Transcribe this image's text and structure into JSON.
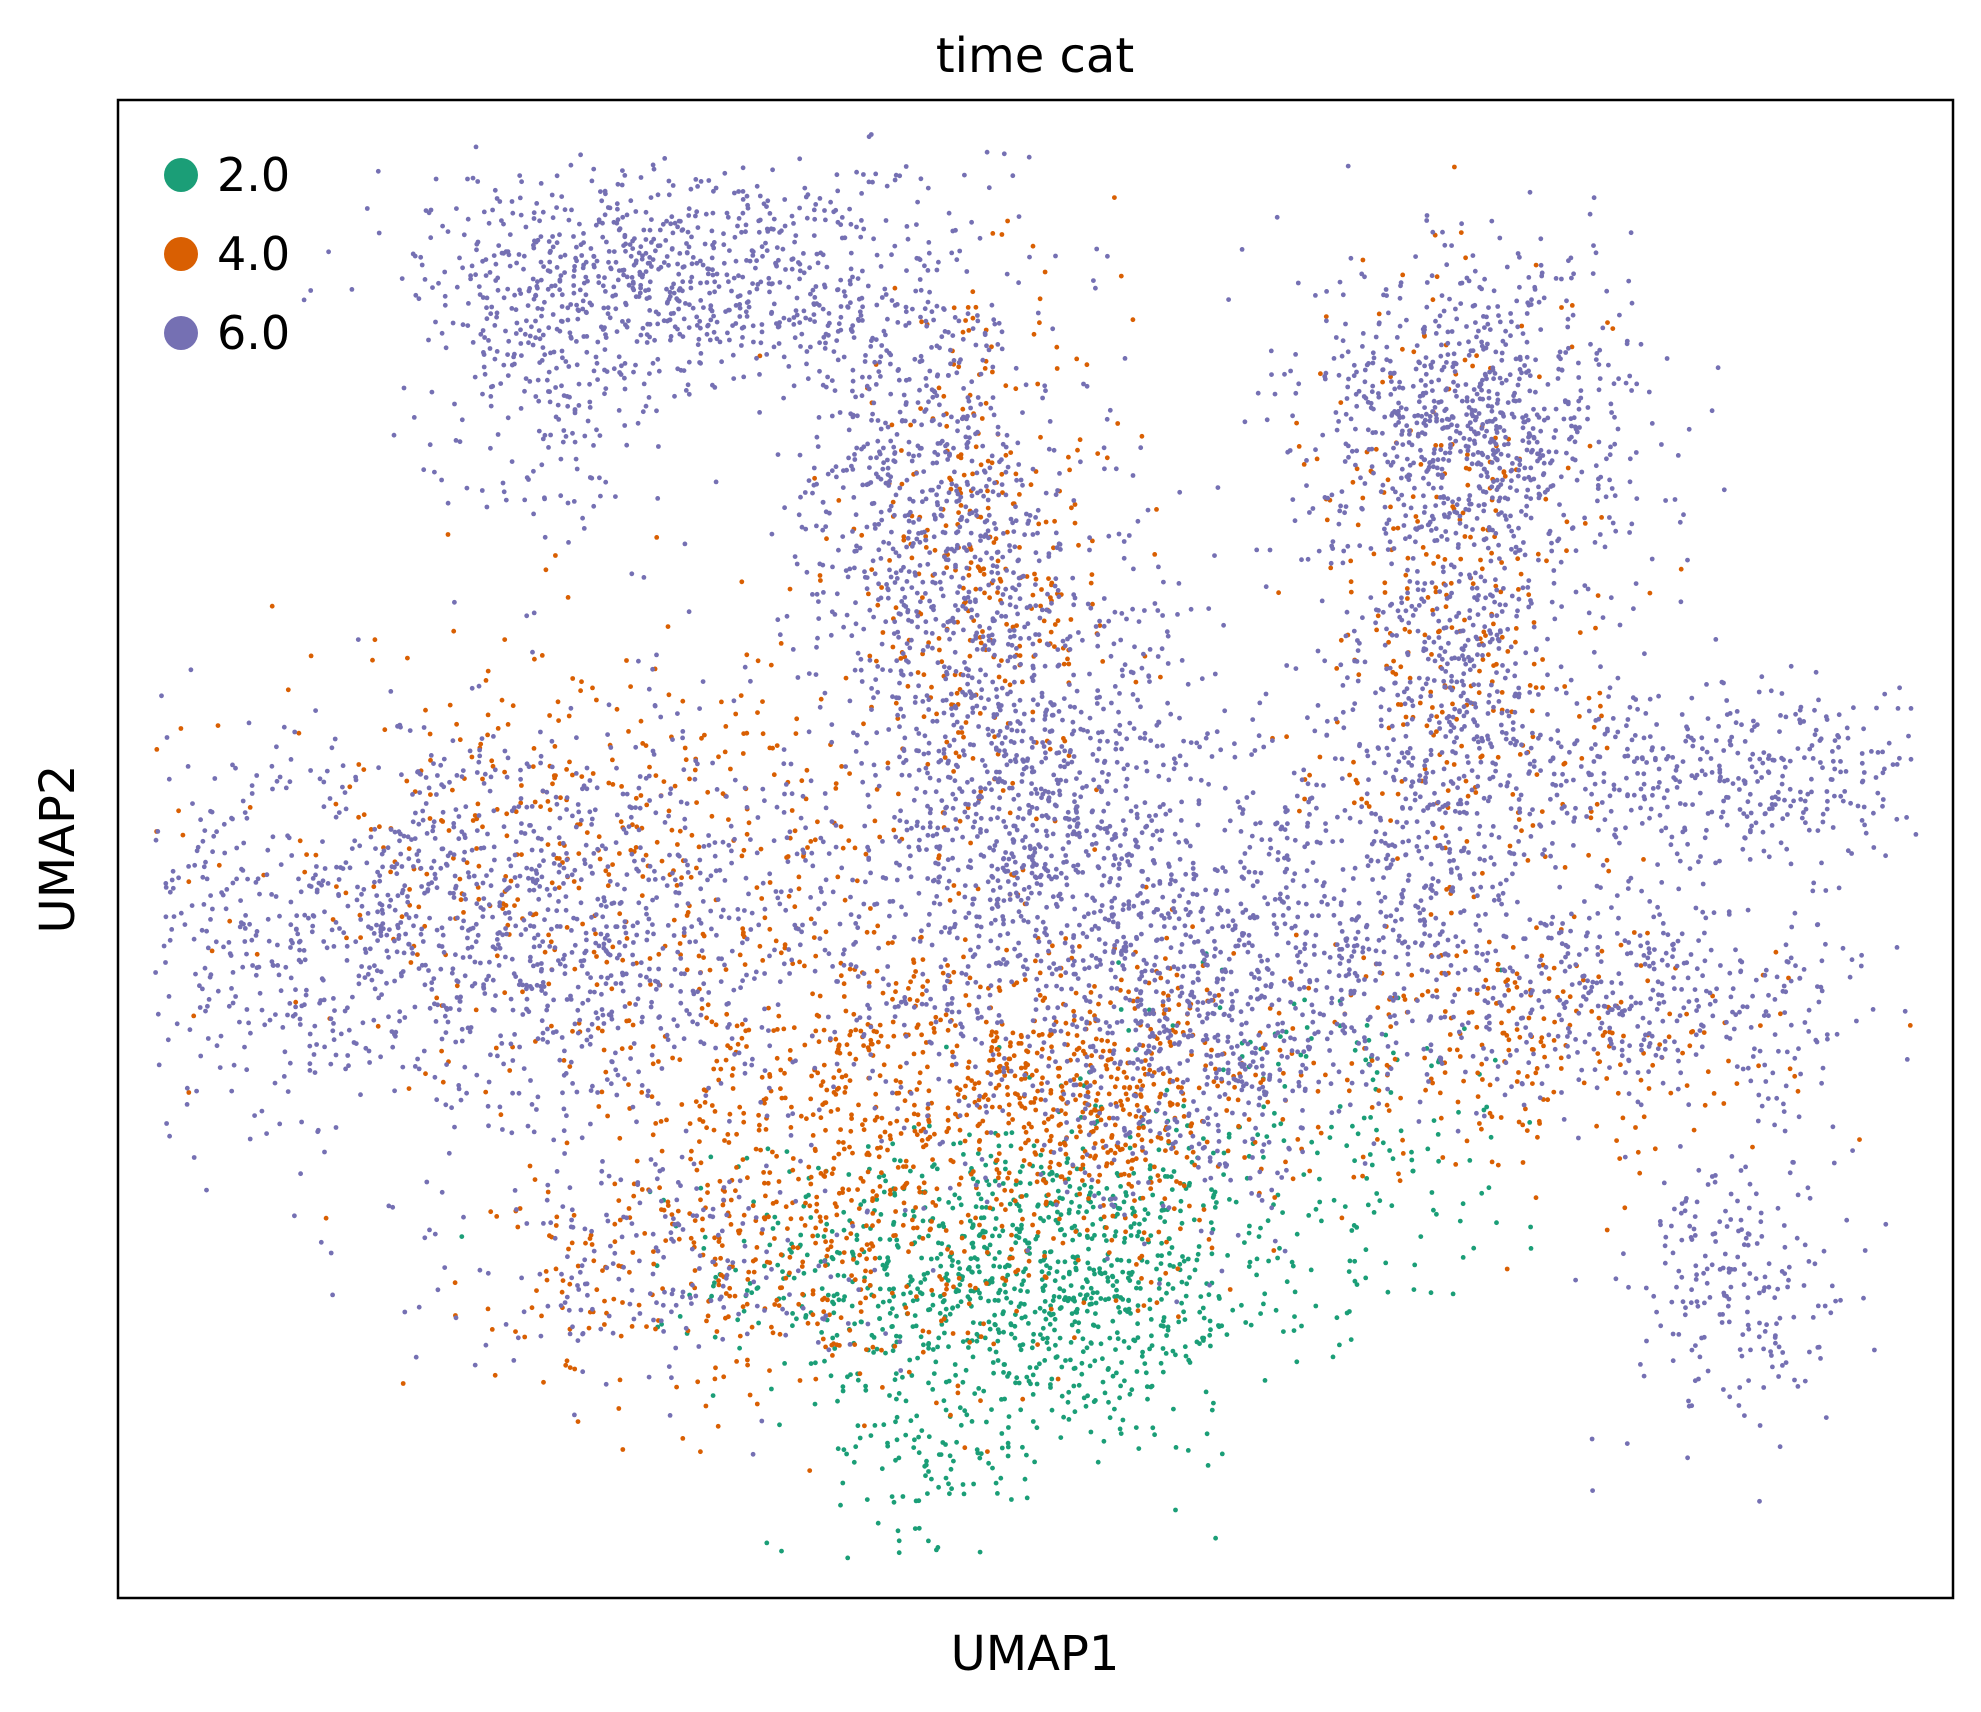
{
  "chart_data": {
    "type": "scatter",
    "title": "time cat",
    "xlabel": "UMAP1",
    "ylabel": "UMAP2",
    "xlim": [
      0,
      100
    ],
    "ylim": [
      0,
      100
    ],
    "grid": false,
    "ticks_shown": false,
    "legend_position": "top-left",
    "legend_title": "",
    "series": [
      {
        "name": "2.0",
        "color": "#1b9e77",
        "regions": [
          {
            "cx": 47.0,
            "cy": 22.0,
            "sx": 7.0,
            "sy": 4.5,
            "weight": 6
          },
          {
            "cx": 53.0,
            "cy": 19.0,
            "sx": 5.0,
            "sy": 5.0,
            "weight": 3
          },
          {
            "cx": 64.0,
            "cy": 30.0,
            "sx": 8.0,
            "sy": 6.0,
            "weight": 2
          },
          {
            "cx": 45.0,
            "cy": 10.0,
            "sx": 3.0,
            "sy": 3.0,
            "weight": 1
          }
        ]
      },
      {
        "name": "4.0",
        "color": "#d95f02",
        "regions": [
          {
            "cx": 44.0,
            "cy": 35.0,
            "sx": 8.0,
            "sy": 5.0,
            "weight": 5
          },
          {
            "cx": 37.0,
            "cy": 23.0,
            "sx": 8.0,
            "sy": 5.0,
            "weight": 4
          },
          {
            "cx": 54.0,
            "cy": 32.0,
            "sx": 5.0,
            "sy": 5.0,
            "weight": 3
          },
          {
            "cx": 47.0,
            "cy": 68.0,
            "sx": 4.0,
            "sy": 9.0,
            "weight": 3
          },
          {
            "cx": 26.0,
            "cy": 50.0,
            "sx": 9.0,
            "sy": 7.0,
            "weight": 4
          },
          {
            "cx": 73.0,
            "cy": 64.0,
            "sx": 4.0,
            "sy": 13.0,
            "weight": 3
          },
          {
            "cx": 77.0,
            "cy": 36.0,
            "sx": 7.0,
            "sy": 4.0,
            "weight": 2
          }
        ]
      },
      {
        "name": "6.0",
        "color": "#7570b3",
        "regions": [
          {
            "cx": 20.0,
            "cy": 45.0,
            "sx": 12.0,
            "sy": 7.0,
            "weight": 14
          },
          {
            "cx": 31.0,
            "cy": 88.0,
            "sx": 7.0,
            "sy": 4.0,
            "weight": 7
          },
          {
            "cx": 23.0,
            "cy": 83.0,
            "sx": 3.0,
            "sy": 6.0,
            "weight": 2
          },
          {
            "cx": 44.0,
            "cy": 74.0,
            "sx": 3.5,
            "sy": 8.0,
            "weight": 6
          },
          {
            "cx": 50.0,
            "cy": 52.0,
            "sx": 5.0,
            "sy": 10.0,
            "weight": 11
          },
          {
            "cx": 59.0,
            "cy": 38.0,
            "sx": 4.0,
            "sy": 6.0,
            "weight": 5
          },
          {
            "cx": 74.0,
            "cy": 78.0,
            "sx": 4.5,
            "sy": 6.0,
            "weight": 8
          },
          {
            "cx": 73.0,
            "cy": 60.0,
            "sx": 3.5,
            "sy": 7.0,
            "weight": 4
          },
          {
            "cx": 88.0,
            "cy": 55.0,
            "sx": 7.0,
            "sy": 3.0,
            "weight": 4
          },
          {
            "cx": 83.0,
            "cy": 40.0,
            "sx": 7.0,
            "sy": 3.5,
            "weight": 4
          },
          {
            "cx": 88.0,
            "cy": 21.0,
            "sx": 3.0,
            "sy": 5.0,
            "weight": 2
          },
          {
            "cx": 68.0,
            "cy": 46.0,
            "sx": 5.0,
            "sy": 6.0,
            "weight": 4
          },
          {
            "cx": 30.0,
            "cy": 22.0,
            "sx": 6.0,
            "sy": 4.0,
            "weight": 2
          }
        ]
      }
    ]
  }
}
